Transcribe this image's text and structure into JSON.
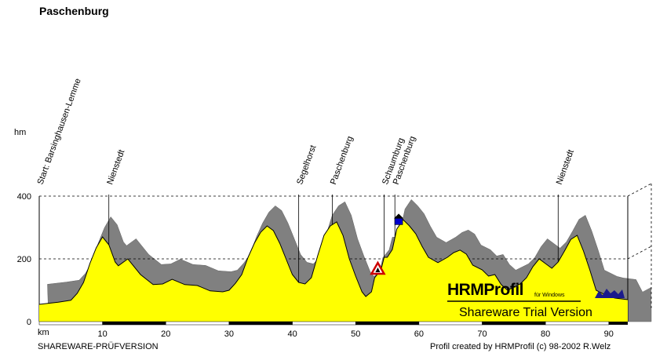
{
  "chart_data": {
    "type": "area",
    "title": "Paschenburg",
    "xlabel": "km",
    "ylabel": "hm",
    "xlim": [
      0,
      93
    ],
    "ylim": [
      0,
      400
    ],
    "x_ticks": [
      10,
      20,
      30,
      40,
      50,
      60,
      70,
      80,
      90
    ],
    "y_ticks": [
      0,
      200,
      400
    ],
    "grid": "dashed horizontal at 200 and 400",
    "colors": {
      "profile_fill": "#ffff00",
      "shadow": "#808080",
      "line": "#000000",
      "base_dark": "#000000"
    },
    "profile": [
      [
        0,
        55
      ],
      [
        3,
        62
      ],
      [
        5,
        68
      ],
      [
        6,
        90
      ],
      [
        7,
        125
      ],
      [
        8,
        185
      ],
      [
        9,
        235
      ],
      [
        10,
        270
      ],
      [
        11,
        245
      ],
      [
        12,
        190
      ],
      [
        12.5,
        178
      ],
      [
        14,
        200
      ],
      [
        16,
        150
      ],
      [
        18,
        118
      ],
      [
        19.5,
        120
      ],
      [
        21,
        135
      ],
      [
        23,
        118
      ],
      [
        25,
        115
      ],
      [
        27,
        98
      ],
      [
        29,
        95
      ],
      [
        30,
        100
      ],
      [
        31,
        122
      ],
      [
        32,
        150
      ],
      [
        33,
        205
      ],
      [
        34,
        250
      ],
      [
        35,
        285
      ],
      [
        36,
        305
      ],
      [
        37,
        290
      ],
      [
        38,
        250
      ],
      [
        39,
        200
      ],
      [
        40,
        150
      ],
      [
        41,
        125
      ],
      [
        42,
        120
      ],
      [
        43,
        140
      ],
      [
        44,
        210
      ],
      [
        45,
        275
      ],
      [
        46,
        305
      ],
      [
        47,
        318
      ],
      [
        48,
        275
      ],
      [
        49,
        200
      ],
      [
        50,
        145
      ],
      [
        51,
        95
      ],
      [
        51.6,
        80
      ],
      [
        52.5,
        95
      ],
      [
        53,
        140
      ],
      [
        54,
        165
      ],
      [
        54.5,
        205
      ],
      [
        55,
        205
      ],
      [
        55.8,
        230
      ],
      [
        56.5,
        295
      ],
      [
        57.5,
        325
      ],
      [
        58.5,
        305
      ],
      [
        59.5,
        280
      ],
      [
        60.5,
        240
      ],
      [
        61.5,
        205
      ],
      [
        63,
        188
      ],
      [
        64.5,
        205
      ],
      [
        65.5,
        220
      ],
      [
        66.5,
        228
      ],
      [
        67.5,
        215
      ],
      [
        68.5,
        180
      ],
      [
        70,
        165
      ],
      [
        71,
        145
      ],
      [
        72,
        150
      ],
      [
        73,
        118
      ],
      [
        74,
        100
      ],
      [
        75,
        110
      ],
      [
        76,
        120
      ],
      [
        77,
        140
      ],
      [
        78,
        175
      ],
      [
        79,
        200
      ],
      [
        80,
        185
      ],
      [
        81,
        170
      ],
      [
        82,
        190
      ],
      [
        83,
        225
      ],
      [
        84,
        262
      ],
      [
        85,
        275
      ],
      [
        86,
        225
      ],
      [
        87,
        165
      ],
      [
        88,
        100
      ],
      [
        90,
        80
      ],
      [
        91,
        75
      ],
      [
        93,
        70
      ]
    ],
    "waypoints": [
      {
        "label": "Start: Barsinghausen-Lemme",
        "km": 0
      },
      {
        "label": "Nienstedt",
        "km": 11
      },
      {
        "label": "Segelhorst",
        "km": 41
      },
      {
        "label": "Paschenburg",
        "km": 46.3
      },
      {
        "label": "Schaumburg",
        "km": 54.5
      },
      {
        "label": "Paschenburg",
        "km": 56.2
      },
      {
        "label": "Nienstedt",
        "km": 82
      }
    ],
    "markers": [
      {
        "type": "warning-triangle",
        "km": 53.5,
        "color": "#cc0000"
      },
      {
        "type": "house",
        "km": 56.8,
        "color": "#0000cc"
      }
    ]
  },
  "labels": {
    "title": "Paschenburg",
    "unit_height": "hm",
    "unit_distance": "km",
    "footer_left": "SHAREWARE-PRÜFVERSION",
    "footer_right": "Profil created by HRMProfil (c) 98-2002 R.Welz"
  },
  "brand": {
    "name": "HRMProfil",
    "subtitle": "für Windows",
    "trial": "Shareware Trial  Version"
  }
}
